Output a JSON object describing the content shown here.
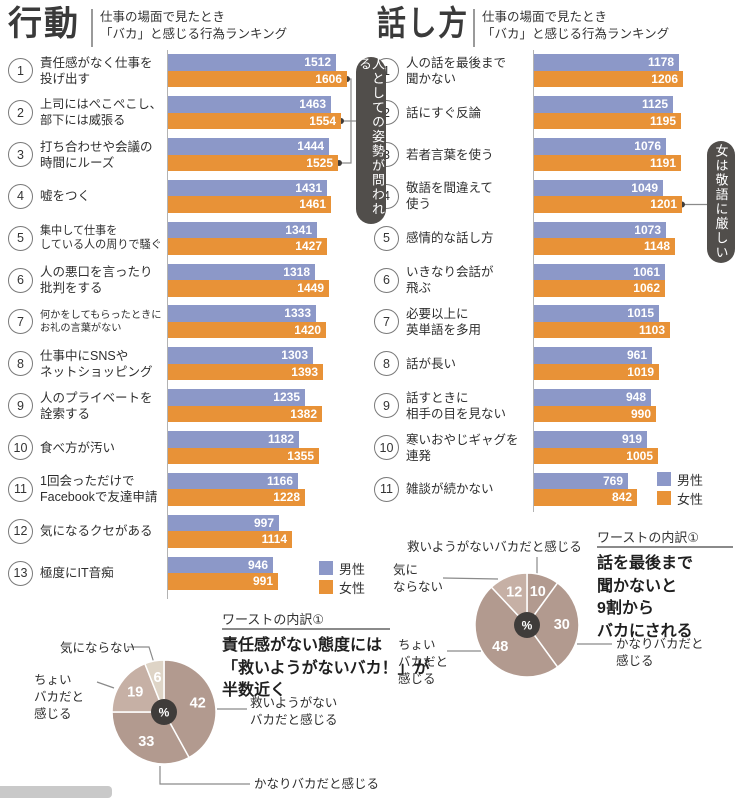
{
  "ui": {
    "headers": [
      {
        "title": "行動",
        "subtitle": "仕事の場面で見たとき\n「バカ」と感じる行為ランキング"
      },
      {
        "title": "話し方",
        "subtitle": "仕事の場面で見たとき\n「バカ」と感じる行為ランキング"
      }
    ]
  },
  "colors": {
    "male": "#8C98C8",
    "female": "#E89237",
    "pill_bg": "#514E4B",
    "taupe": "#b29a8f",
    "taupe_light": "#c6b0a5",
    "beige": "#ded4c6",
    "pie_center": "#3f3c3a"
  },
  "chart_data": [
    {
      "type": "bar",
      "orientation": "horizontal",
      "title": "行動",
      "subtitle": "仕事の場面で見たとき「バカ」と感じる行為ランキング",
      "categories": [
        "責任感がなく仕事を\n投げ出す",
        "上司にはぺこぺこし、\n部下には威張る",
        "打ち合わせや会議の\n時間にルーズ",
        "嘘をつく",
        "集中して仕事を\nしている人の周りで騒ぐ",
        "人の悪口を言ったり\n批判をする",
        "何かをしてもらったときに\nお礼の言葉がない",
        "仕事中にSNSや\nネットショッピング",
        "人のプライベートを\n詮索する",
        "食べ方が汚い",
        "1回会っただけで\nFacebookで友達申請",
        "気になるクセがある",
        "極度にIT音痴"
      ],
      "series": [
        {
          "name": "男性",
          "values": [
            1512,
            1463,
            1444,
            1431,
            1341,
            1318,
            1333,
            1303,
            1235,
            1182,
            1166,
            997,
            946
          ]
        },
        {
          "name": "女性",
          "values": [
            1606,
            1554,
            1525,
            1461,
            1427,
            1449,
            1420,
            1393,
            1382,
            1355,
            1228,
            1114,
            991
          ]
        }
      ],
      "annotation": "人としての姿勢が問われる",
      "annotation_target_ranks": [
        1,
        2,
        3
      ],
      "legend_position": "bottom-right",
      "grid": false
    },
    {
      "type": "bar",
      "orientation": "horizontal",
      "title": "話し方",
      "subtitle": "仕事の場面で見たとき「バカ」と感じる行為ランキング",
      "categories": [
        "人の話を最後まで\n聞かない",
        "話にすぐ反論",
        "若者言葉を使う",
        "敬語を間違えて\n使う",
        "感情的な話し方",
        "いきなり会話が\n飛ぶ",
        "必要以上に\n英単語を多用",
        "話が長い",
        "話すときに\n相手の目を見ない",
        "寒いおやじギャグを\n連発",
        "雑談が続かない"
      ],
      "series": [
        {
          "name": "男性",
          "values": [
            1178,
            1125,
            1076,
            1049,
            1073,
            1061,
            1015,
            961,
            948,
            919,
            769
          ]
        },
        {
          "name": "女性",
          "values": [
            1206,
            1195,
            1191,
            1201,
            1148,
            1062,
            1103,
            1019,
            990,
            1005,
            842
          ]
        }
      ],
      "annotation": "女は敬語に厳しい",
      "annotation_target_ranks": [
        4
      ],
      "legend_position": "bottom-right",
      "grid": false
    },
    {
      "type": "pie",
      "title": "ワーストの内訳①",
      "labels": [
        "救いようがないバカだと感じる",
        "かなりバカだと感じる",
        "ちょいバカだと感じる",
        "気にならない"
      ],
      "values": [
        42,
        33,
        19,
        6
      ],
      "unit": "%",
      "start_angle": "12-o-clock-clockwise"
    },
    {
      "type": "pie",
      "title": "ワーストの内訳①",
      "labels": [
        "救いようがないバカだと感じる",
        "かなりバカだと感じる",
        "ちょいバカだと感じる",
        "気にならない"
      ],
      "values": [
        10,
        30,
        48,
        12
      ],
      "unit": "%",
      "start_angle": "12-o-clock-clockwise"
    }
  ],
  "pies": [
    {
      "section_title": "ワーストの内訳①",
      "headline": "責任感がない態度には\n「救いようがないバカ！」が\n半数近く",
      "center_symbol": "%",
      "slice_colors": [
        "taupe",
        "taupe",
        "taupe_light",
        "beige"
      ],
      "callouts": [
        {
          "text": "気にならない"
        },
        {
          "text": "ちょい\nバカだと\n感じる"
        },
        {
          "text": "救いようがない\nバカだと感じる"
        },
        {
          "text": "かなりバカだと感じる"
        }
      ]
    },
    {
      "section_title": "ワーストの内訳①",
      "headline": "話を最後まで\n聞かないと\n9割から\nバカにされる",
      "center_symbol": "%",
      "slice_colors": [
        "taupe",
        "taupe",
        "taupe",
        "taupe_light"
      ],
      "callouts": [
        {
          "text": "救いようがないバカだと感じる"
        },
        {
          "text": "気に\nならない"
        },
        {
          "text": "ちょい\nバカだと\n感じる"
        },
        {
          "text": "かなりバカだと\n感じる"
        }
      ]
    }
  ]
}
